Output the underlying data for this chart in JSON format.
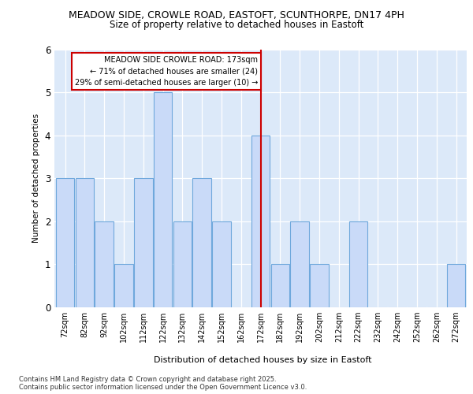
{
  "title1": "MEADOW SIDE, CROWLE ROAD, EASTOFT, SCUNTHORPE, DN17 4PH",
  "title2": "Size of property relative to detached houses in Eastoft",
  "xlabel": "Distribution of detached houses by size in Eastoft",
  "ylabel": "Number of detached properties",
  "annotation_title": "MEADOW SIDE CROWLE ROAD: 173sqm",
  "annotation_line1": "← 71% of detached houses are smaller (24)",
  "annotation_line2": "29% of semi-detached houses are larger (10) →",
  "footer1": "Contains HM Land Registry data © Crown copyright and database right 2025.",
  "footer2": "Contains public sector information licensed under the Open Government Licence v3.0.",
  "categories": [
    "72sqm",
    "82sqm",
    "92sqm",
    "102sqm",
    "112sqm",
    "122sqm",
    "132sqm",
    "142sqm",
    "152sqm",
    "162sqm",
    "172sqm",
    "182sqm",
    "192sqm",
    "202sqm",
    "212sqm",
    "222sqm",
    "232sqm",
    "242sqm",
    "252sqm",
    "262sqm",
    "272sqm"
  ],
  "values": [
    3,
    3,
    2,
    1,
    3,
    5,
    2,
    3,
    2,
    0,
    4,
    1,
    2,
    1,
    0,
    2,
    0,
    0,
    0,
    0,
    1
  ],
  "bar_color": "#c9daf8",
  "bar_edge_color": "#6fa8dc",
  "vline_index": 10,
  "vline_color": "#cc0000",
  "background_color": "#dce9f9",
  "ann_box_color": "#cc0000",
  "ylim": [
    0,
    6
  ],
  "yticks": [
    0,
    1,
    2,
    3,
    4,
    5,
    6
  ]
}
